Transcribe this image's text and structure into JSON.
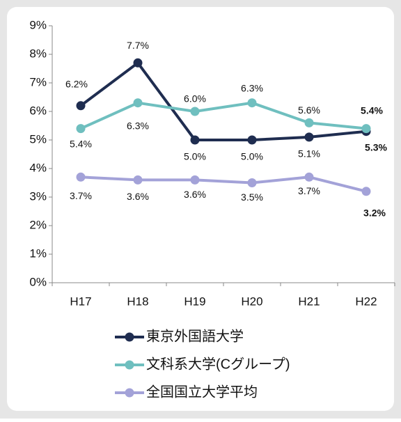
{
  "chart_data": {
    "type": "line",
    "categories": [
      "H17",
      "H18",
      "H19",
      "H20",
      "H21",
      "H22"
    ],
    "series": [
      {
        "name": "東京外国語大学",
        "color": "#1f2d50",
        "values": [
          6.2,
          7.7,
          5.0,
          5.0,
          5.1,
          5.3
        ],
        "value_labels": [
          "6.2%",
          "7.7%",
          "5.0%",
          "5.0%",
          "5.1%",
          "5.3%"
        ]
      },
      {
        "name": "文科系大学(Cグループ)",
        "color": "#6fbfbf",
        "values": [
          5.4,
          6.3,
          6.0,
          6.3,
          5.6,
          5.4
        ],
        "value_labels": [
          "5.4%",
          "6.3%",
          "6.0%",
          "6.3%",
          "5.6%",
          "5.4%"
        ]
      },
      {
        "name": "全国国立大学平均",
        "color": "#a3a2d8",
        "values": [
          3.7,
          3.6,
          3.6,
          3.5,
          3.7,
          3.2
        ],
        "value_labels": [
          "3.7%",
          "3.6%",
          "3.6%",
          "3.5%",
          "3.7%",
          "3.2%"
        ]
      }
    ],
    "ylim": [
      0,
      9
    ],
    "yticks": [
      {
        "value": 0,
        "label": "0%"
      },
      {
        "value": 1,
        "label": "1%"
      },
      {
        "value": 2,
        "label": "2%"
      },
      {
        "value": 3,
        "label": "3%"
      },
      {
        "value": 4,
        "label": "4%"
      },
      {
        "value": 5,
        "label": "5%"
      },
      {
        "value": 6,
        "label": "6%"
      },
      {
        "value": 7,
        "label": "7%"
      },
      {
        "value": 8,
        "label": "8%"
      },
      {
        "value": 9,
        "label": "9%"
      }
    ],
    "legend": "bottom"
  }
}
